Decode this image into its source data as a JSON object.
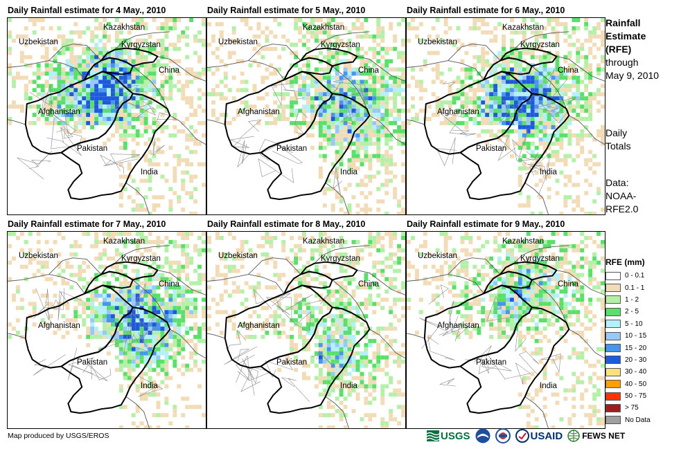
{
  "panels": [
    {
      "title": "Daily Rainfall estimate for 4 May., 2010",
      "seed": 4,
      "intensity": 0.55,
      "wet_core": [
        130,
        110
      ]
    },
    {
      "title": "Daily Rainfall estimate for 5 May., 2010",
      "seed": 5,
      "intensity": 0.45,
      "wet_core": [
        200,
        135
      ]
    },
    {
      "title": "Daily Rainfall estimate for 6 May., 2010",
      "seed": 6,
      "intensity": 0.55,
      "wet_core": [
        160,
        125
      ]
    },
    {
      "title": "Daily Rainfall estimate for 7 May., 2010",
      "seed": 7,
      "intensity": 0.5,
      "wet_core": [
        185,
        135
      ]
    },
    {
      "title": "Daily Rainfall estimate for 8 May., 2010",
      "seed": 8,
      "intensity": 0.35,
      "wet_core": [
        170,
        175
      ]
    },
    {
      "title": "Daily Rainfall estimate for 9 May., 2010",
      "seed": 9,
      "intensity": 0.3,
      "wet_core": [
        160,
        90
      ]
    }
  ],
  "map_labels": {
    "kazakhstan": "Kazakhstan",
    "uzbekistan": "Uzbekistan",
    "kyrgyzstan": "Kyrgyzstan",
    "china": "China",
    "afghanistan": "Afghanistan",
    "pakistan": "Pakistan",
    "india": "India"
  },
  "side": {
    "title_line1": "Rainfall",
    "title_line2": "Estimate",
    "title_line3": "(RFE)",
    "through": "through",
    "date": "May 9, 2010",
    "daily_line1": "Daily",
    "daily_line2": "Totals",
    "data_line1": "Data:",
    "data_line2": "NOAA-",
    "data_line3": "RFE2.0"
  },
  "legend": {
    "title": "RFE (mm)",
    "items": [
      {
        "label": "0 - 0.1",
        "color": "#ffffff"
      },
      {
        "label": "0.1 - 1",
        "color": "#f2dcb7"
      },
      {
        "label": "1 - 2",
        "color": "#b4f0a8"
      },
      {
        "label": "2 - 5",
        "color": "#5ae06a"
      },
      {
        "label": "5 - 10",
        "color": "#b4f0f8"
      },
      {
        "label": "10 - 15",
        "color": "#96c8f8"
      },
      {
        "label": "15 - 20",
        "color": "#4696ee"
      },
      {
        "label": "20 - 30",
        "color": "#1e5adc"
      },
      {
        "label": "30 - 40",
        "color": "#fae27a"
      },
      {
        "label": "40 - 50",
        "color": "#ffa000"
      },
      {
        "label": "50 - 75",
        "color": "#ff3200"
      },
      {
        "label": "> 75",
        "color": "#a01e1e"
      },
      {
        "label": "No Data",
        "color": "#a0a0a0"
      }
    ]
  },
  "credit": "Map produced by USGS/EROS",
  "logos": {
    "usgs": "USGS",
    "usaid": "USAID",
    "fewsnet": "FEWS NET"
  }
}
